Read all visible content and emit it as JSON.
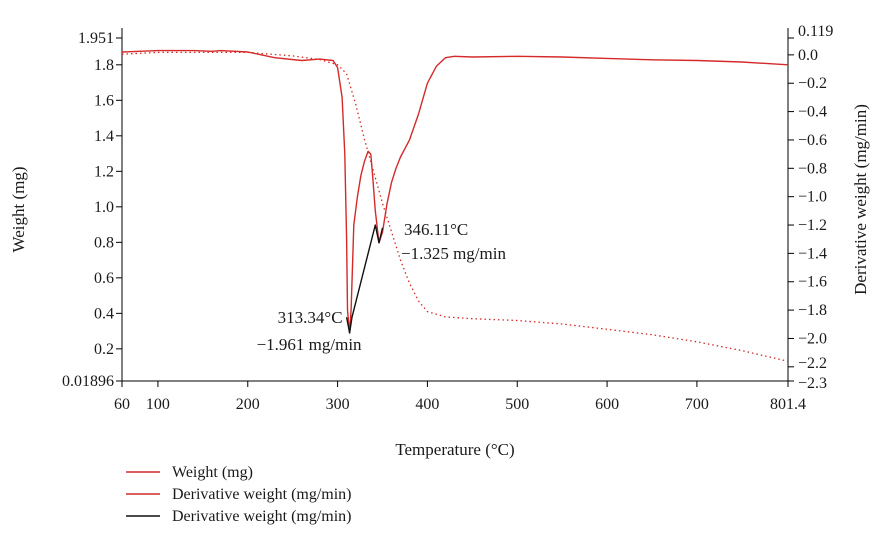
{
  "chart_data": {
    "type": "line",
    "xlabel": "Temperature (°C)",
    "ylabel_left": "Weight (mg)",
    "ylabel_right": "Derivative weight (mg/min)",
    "xlim": [
      60,
      801.4
    ],
    "ylim_left": [
      0.01896,
      1.951
    ],
    "ylim_right": [
      -2.3,
      0.119
    ],
    "x_ticks": [
      "60",
      "100",
      "200",
      "300",
      "400",
      "500",
      "600",
      "700",
      "801.4"
    ],
    "x_tick_values": [
      60,
      100,
      200,
      300,
      400,
      500,
      600,
      700,
      801.4
    ],
    "y_left_ticks": [
      "0.01896",
      "0.2",
      "0.4",
      "0.6",
      "0.8",
      "1.0",
      "1.2",
      "1.4",
      "1.6",
      "1.8",
      "1.951"
    ],
    "y_left_tick_values": [
      0.01896,
      0.2,
      0.4,
      0.6,
      0.8,
      1.0,
      1.2,
      1.4,
      1.6,
      1.8,
      1.951
    ],
    "y_right_ticks": [
      "−2.3",
      "−2.2",
      "−2.0",
      "−1.8",
      "−1.6",
      "−1.4",
      "−1.2",
      "−1.0",
      "−0.8",
      "−0.6",
      "−0.4",
      "−0.2",
      "0.0",
      "0.119"
    ],
    "y_right_tick_values": [
      -2.3,
      -2.2,
      -2.0,
      -1.8,
      -1.6,
      -1.4,
      -1.2,
      -1.0,
      -0.8,
      -0.6,
      -0.4,
      -0.2,
      0.0,
      0.119
    ],
    "series": [
      {
        "name": "Weight (mg)",
        "axis": "left",
        "color": "#d42a2a",
        "style": "dotted",
        "x": [
          60,
          100,
          150,
          200,
          250,
          280,
          300,
          310,
          320,
          330,
          340,
          350,
          360,
          370,
          380,
          390,
          400,
          420,
          450,
          500,
          550,
          600,
          650,
          700,
          750,
          801.4
        ],
        "y": [
          1.86,
          1.87,
          1.87,
          1.87,
          1.85,
          1.83,
          1.8,
          1.75,
          1.58,
          1.38,
          1.2,
          1.02,
          0.86,
          0.7,
          0.57,
          0.47,
          0.41,
          0.38,
          0.37,
          0.36,
          0.34,
          0.31,
          0.28,
          0.24,
          0.19,
          0.13
        ]
      },
      {
        "name": "Derivative weight (mg/min)",
        "axis": "right",
        "color": "#d42a2a",
        "style": "solid",
        "x": [
          60,
          100,
          140,
          160,
          170,
          200,
          230,
          260,
          280,
          295,
          300,
          305,
          308,
          310,
          311,
          313.34,
          315,
          318,
          322,
          326,
          330,
          334,
          337,
          339,
          342,
          346.11,
          350,
          355,
          360,
          365,
          370,
          380,
          390,
          400,
          410,
          420,
          430,
          450,
          500,
          550,
          600,
          650,
          700,
          750,
          801.4
        ],
        "y": [
          0.02,
          0.03,
          0.03,
          0.025,
          0.03,
          0.02,
          -0.02,
          -0.04,
          -0.03,
          -0.04,
          -0.09,
          -0.3,
          -0.7,
          -1.3,
          -1.8,
          -1.961,
          -1.8,
          -1.2,
          -1.0,
          -0.85,
          -0.75,
          -0.68,
          -0.7,
          -0.85,
          -1.1,
          -1.325,
          -1.25,
          -1.05,
          -0.9,
          -0.8,
          -0.72,
          -0.6,
          -0.42,
          -0.2,
          -0.08,
          -0.02,
          -0.01,
          -0.015,
          -0.01,
          -0.015,
          -0.025,
          -0.035,
          -0.04,
          -0.05,
          -0.07
        ]
      },
      {
        "name": "Derivative weight (mg/min)",
        "axis": "right",
        "color": "#111111",
        "style": "solid",
        "x": [
          310,
          313.34,
          316,
          342,
          346.11,
          350
        ],
        "y": [
          -1.85,
          -1.961,
          -1.85,
          -1.2,
          -1.325,
          -1.22
        ]
      }
    ],
    "annotations": [
      {
        "x": 313.34,
        "y": -1.961,
        "lines": [
          "313.34°C",
          "−1.961 mg/min"
        ]
      },
      {
        "x": 346.11,
        "y": -1.325,
        "lines": [
          "346.11°C",
          "−1.325 mg/min"
        ]
      }
    ],
    "legend": {
      "placement": "bottom-left",
      "entries": [
        {
          "label": "Weight (mg)",
          "color": "#d42a2a"
        },
        {
          "label": "Derivative weight (mg/min)",
          "color": "#d42a2a"
        },
        {
          "label": "Derivative weight (mg/min)",
          "color": "#111111"
        }
      ]
    },
    "grid": false
  }
}
